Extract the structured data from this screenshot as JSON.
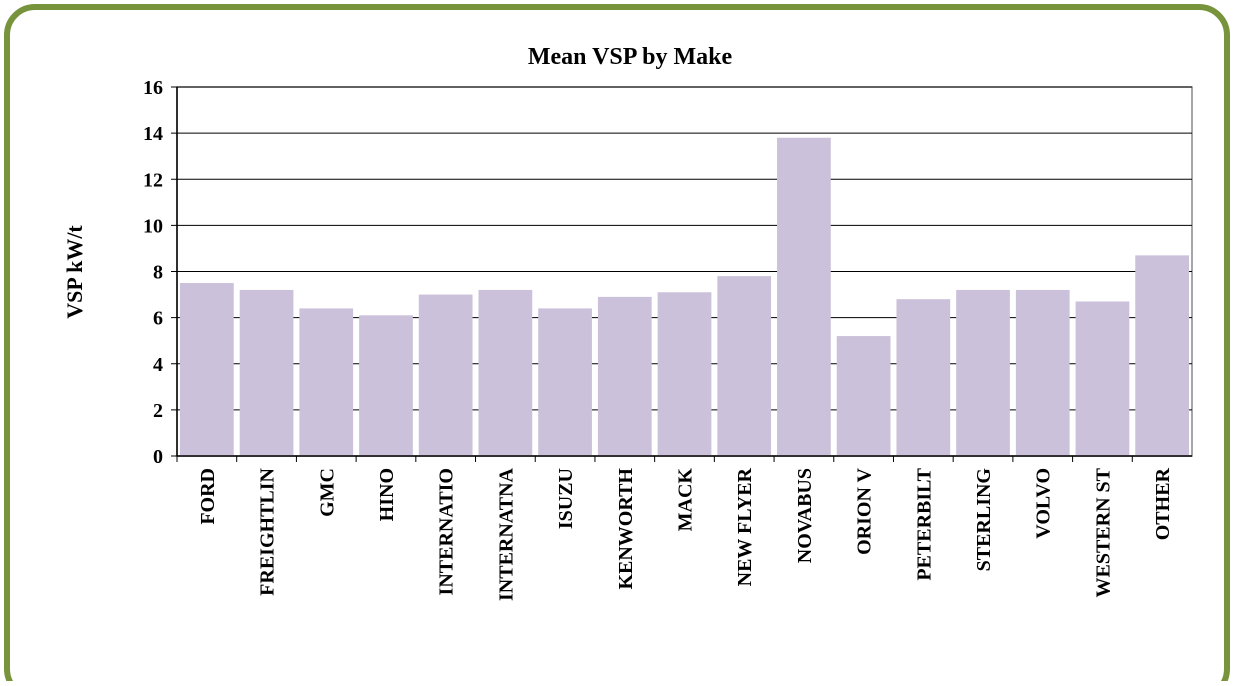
{
  "chart_data": {
    "type": "bar",
    "title": "Mean VSP by Make",
    "y_label": "VSP kW/t",
    "categories": [
      "FORD",
      "FREIGHTLIN",
      "GMC",
      "HINO",
      "INTERNATIO",
      "INTERNATNA",
      "ISUZU",
      "KENWORTH",
      "MACK",
      "NEW FLYER",
      "NOVABUS",
      "ORION V",
      "PETERBILT",
      "STERLING",
      "VOLVO",
      "WESTERN ST",
      "OTHER"
    ],
    "values": [
      7.5,
      7.2,
      6.4,
      6.1,
      7.0,
      7.2,
      6.4,
      6.9,
      7.1,
      7.8,
      13.8,
      5.2,
      6.8,
      7.2,
      7.2,
      6.7,
      8.7
    ],
    "color": "#ccc1da",
    "ylim": [
      0,
      16
    ],
    "yticks": [
      0,
      2,
      4,
      6,
      8,
      10,
      12,
      14,
      16
    ],
    "grid": true
  }
}
